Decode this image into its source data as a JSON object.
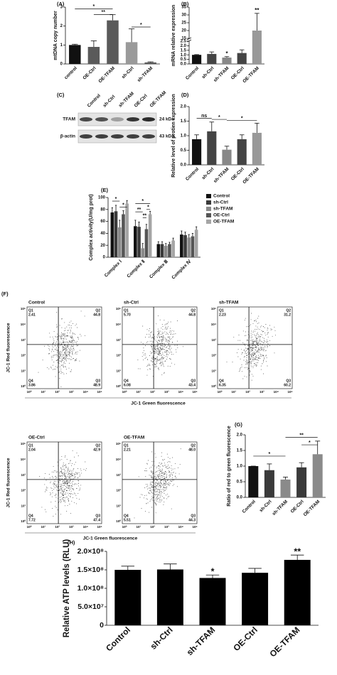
{
  "chart_data": [
    {
      "type": "bar",
      "panel": "(A)",
      "ylabel": "mtDNA copy number",
      "categories": [
        "control",
        "OE-Ctrl",
        "OE-TFAM",
        "sh-Ctrl",
        "sh-TFAM"
      ],
      "values": [
        1.0,
        0.9,
        2.3,
        1.15,
        0.08
      ],
      "errors": [
        0.04,
        0.32,
        0.3,
        0.7,
        0.03
      ],
      "colors": [
        "#111111",
        "#5a5a5a",
        "#5a5a5a",
        "#9a9a9a",
        "#5a5a5a"
      ],
      "ylim": [
        0,
        3
      ],
      "yticks": [
        0,
        1,
        2,
        3
      ],
      "annotations": [
        "*",
        "**",
        "*"
      ]
    },
    {
      "type": "bar",
      "panel": "(B)",
      "ylabel": "mRNA relative expression",
      "categories": [
        "Control",
        "sh-Ctrl",
        "sh-TFAM",
        "OE-Ctrl",
        "OE-TFAM"
      ],
      "values": [
        1.0,
        1.1,
        0.7,
        1.2,
        20
      ],
      "errors": [
        0.03,
        0.22,
        0.1,
        0.35,
        11
      ],
      "colors": [
        "#111111",
        "#444444",
        "#888888",
        "#444444",
        "#999999"
      ],
      "ylim": [
        0,
        35
      ],
      "ybreak": [
        2.5,
        15
      ],
      "yticks": [
        {
          "value": 0,
          "label": "0.0"
        },
        0.5,
        {
          "value": 1,
          "label": "1.0"
        },
        1.5,
        {
          "value": 2,
          "label": "2.0"
        },
        2.5,
        15,
        20,
        25,
        30,
        35
      ],
      "annotations": [
        "*",
        "**"
      ]
    },
    {
      "type": "bar",
      "panel": "(D)",
      "ylabel": "Relative level of protien expression",
      "categories": [
        "Control",
        "sh-Ctrl",
        "sh-TFAM",
        "OE-Ctrl",
        "OE-TFAM"
      ],
      "values": [
        0.88,
        1.15,
        0.52,
        0.88,
        1.1
      ],
      "errors": [
        0.15,
        0.32,
        0.12,
        0.15,
        0.33
      ],
      "colors": [
        "#111111",
        "#444444",
        "#888888",
        "#444444",
        "#999999"
      ],
      "ylim": [
        0,
        2
      ],
      "yticks": [
        {
          "value": 0,
          "label": "0.0"
        },
        0.5,
        {
          "value": 1,
          "label": "1.0"
        },
        1.5,
        {
          "value": 2,
          "label": "2.0"
        }
      ],
      "annotations": [
        "ns",
        "*",
        "*"
      ]
    },
    {
      "type": "bar",
      "panel": "(E)",
      "ylabel": "Complex activity(U/mg prot)",
      "categories": [
        "Complex Ⅰ",
        "Complex Ⅱ",
        "Complex Ⅲ",
        "Complex Ⅳ"
      ],
      "series": [
        {
          "name": "Control",
          "color": "#111111",
          "values": [
            75,
            52,
            22,
            38
          ],
          "errors": [
            8,
            10,
            4,
            6
          ]
        },
        {
          "name": "sh-Ctrl",
          "color": "#3a3a3a",
          "values": [
            77,
            51,
            22,
            37
          ],
          "errors": [
            10,
            8,
            4,
            5
          ]
        },
        {
          "name": "sh-TFAM",
          "color": "#8a8a8a",
          "values": [
            50,
            15,
            19,
            33
          ],
          "errors": [
            12,
            8,
            4,
            5
          ]
        },
        {
          "name": "OE-Ctrl",
          "color": "#555555",
          "values": [
            72,
            47,
            22,
            35
          ],
          "errors": [
            6,
            8,
            3,
            5
          ]
        },
        {
          "name": "OE-TFAM",
          "color": "#a5a5a5",
          "values": [
            90,
            72,
            28,
            46
          ],
          "errors": [
            5,
            5,
            4,
            5
          ]
        }
      ],
      "ylim": [
        0,
        100
      ],
      "yticks": [
        0,
        20,
        40,
        60,
        80,
        100
      ],
      "annotations": [
        "*",
        "*",
        "*",
        "**",
        "**",
        "*"
      ],
      "legend": "right"
    },
    {
      "type": "bar",
      "panel": "(G)",
      "ylabel": "Ratio of red to green fluorescence",
      "categories": [
        "Control",
        "sh-Ctrl",
        "sh-TFAM",
        "OE-Ctrl",
        "OE-TFAM"
      ],
      "values": [
        1.0,
        0.87,
        0.57,
        0.96,
        1.38
      ],
      "errors": [
        0,
        0.2,
        0.08,
        0.15,
        0.42
      ],
      "colors": [
        "#111111",
        "#3a3a3a",
        "#8a8a8a",
        "#3a3a3a",
        "#8a8a8a"
      ],
      "ylim": [
        0,
        2
      ],
      "yticks": [
        {
          "value": 0,
          "label": "0.0"
        },
        0.5,
        {
          "value": 1,
          "label": "1.0"
        },
        1.5,
        {
          "value": 2,
          "label": "2.0"
        }
      ],
      "annotations": [
        "*",
        "**",
        "*"
      ]
    },
    {
      "type": "bar",
      "panel": "(H)",
      "ylabel": "Relative ATP levels (RLU)",
      "categories": [
        "Control",
        "sh-Ctrl",
        "sh-TFAM",
        "OE-Ctrl",
        "OE-TFAM"
      ],
      "values": [
        150000000,
        151000000,
        128000000,
        142000000,
        177000000
      ],
      "errors": [
        10000000,
        15000000,
        8000000,
        12000000,
        13000000
      ],
      "colors": [
        "#000000",
        "#000000",
        "#000000",
        "#000000",
        "#000000"
      ],
      "ylim": [
        0,
        200000000
      ],
      "yticks": [
        0,
        {
          "value": 50000000,
          "label": "5.0×10⁷"
        },
        {
          "value": 100000000,
          "label": "1.0×10⁸"
        },
        {
          "value": 150000000,
          "label": "1.5×10⁸"
        },
        {
          "value": 200000000,
          "label": "2.0×10⁸"
        }
      ],
      "annotations": [
        "*",
        "**"
      ]
    }
  ],
  "blot": {
    "panel": "(C)",
    "lanes": [
      "Control",
      "sh-Ctrl",
      "sh-TFAM",
      "OE-Ctrl",
      "OE-TFAM"
    ],
    "rows": [
      {
        "label": "TFAM",
        "size": "24 kDa"
      },
      {
        "label": "β-actin",
        "size": "43 kDa"
      }
    ]
  },
  "flow": {
    "panel": "(F)",
    "ylabel": "JC-1 Red fluorescence",
    "xlabel": "JC-1 Green fluorescence",
    "ticks": [
      "10⁰",
      "10¹",
      "10²",
      "10³",
      "10⁴",
      "10⁵"
    ],
    "plots": [
      {
        "title": "Control",
        "quadrants": [
          {
            "name": "Q1",
            "value": "2.41"
          },
          {
            "name": "Q2",
            "value": "44.8"
          },
          {
            "name": "Q4",
            "value": "3.86"
          },
          {
            "name": "Q3",
            "value": "48.9"
          }
        ]
      },
      {
        "title": "sh-Ctrl",
        "quadrants": [
          {
            "name": "Q1",
            "value": "5.70"
          },
          {
            "name": "Q2",
            "value": "44.8"
          },
          {
            "name": "Q4",
            "value": "6.08"
          },
          {
            "name": "Q3",
            "value": "43.4"
          }
        ]
      },
      {
        "title": "sh-TFAM",
        "quadrants": [
          {
            "name": "Q1",
            "value": "2.23"
          },
          {
            "name": "Q2",
            "value": "31.2"
          },
          {
            "name": "Q4",
            "value": "6.35"
          },
          {
            "name": "Q3",
            "value": "60.2"
          }
        ]
      },
      {
        "title": "OE-Ctrl",
        "quadrants": [
          {
            "name": "Q1",
            "value": "2.04"
          },
          {
            "name": "Q2",
            "value": "42.9"
          },
          {
            "name": "Q4",
            "value": "7.72"
          },
          {
            "name": "Q3",
            "value": "47.4"
          }
        ]
      },
      {
        "title": "OE-TFAM",
        "quadrants": [
          {
            "name": "Q1",
            "value": "2.21"
          },
          {
            "name": "Q2",
            "value": "48.0"
          },
          {
            "name": "Q4",
            "value": "5.51"
          },
          {
            "name": "Q3",
            "value": "44.3"
          }
        ]
      }
    ]
  }
}
